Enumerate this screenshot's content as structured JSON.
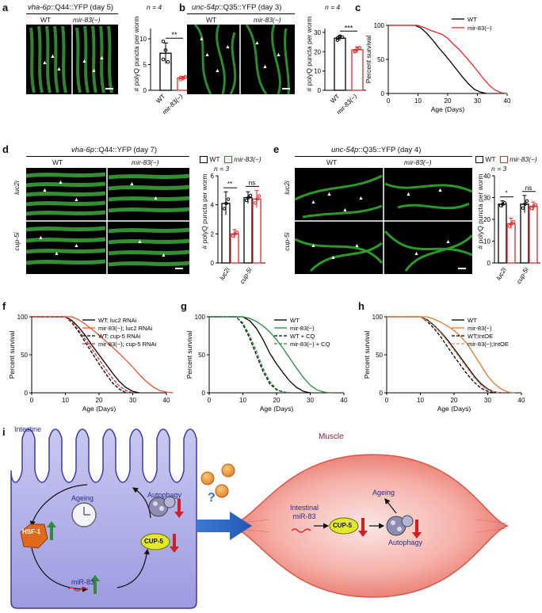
{
  "panels": {
    "a": {
      "label": "a",
      "title_gene": "vha-6p",
      "title_rest": "::Q44::YFP (day 5)",
      "col_wt": "WT",
      "col_mut": "mir-83(−)",
      "chart_n": "n = 4",
      "sig": "**",
      "ylabel": "# polyQ puncta per worm",
      "yticks": [
        "0",
        "5",
        "10"
      ]
    },
    "b": {
      "label": "b",
      "title_gene": "unc-54p",
      "title_rest": "::Q35::YFP (day 3)",
      "col_wt": "WT",
      "col_mut": "mir-83(−)",
      "chart_n": "n = 4",
      "sig": "***",
      "ylabel": "# polyQ puncta per worm",
      "yticks": [
        "0",
        "10",
        "20",
        "30"
      ]
    },
    "c": {
      "label": "c",
      "legend": [
        "WT",
        "mir-83(−)"
      ],
      "ylabel": "Percent survival",
      "xlabel": "Age (Days)",
      "xticks": [
        "0",
        "10",
        "20",
        "30",
        "40"
      ],
      "yticks": [
        "0",
        "50",
        "100"
      ]
    },
    "d": {
      "label": "d",
      "title_gene": "vha-6p",
      "title_rest": "::Q44::YFP (day 7)",
      "col_wt": "WT",
      "col_mut": "mir-83(−)",
      "row1": "luc2i",
      "row2": "cup-5i",
      "legend_wt": "WT",
      "legend_mut": "mir-83(−)",
      "chart_n": "n = 3",
      "sig1": "**",
      "sig2": "ns",
      "ylabel": "# polyQ puncta per worm",
      "yticks": [
        "0",
        "2",
        "4",
        "6"
      ],
      "xcats": [
        "luc2i",
        "cup-5i"
      ]
    },
    "e": {
      "label": "e",
      "title_gene": "unc-54p",
      "title_rest": "::Q35::YFP (day 4)",
      "col_wt": "WT",
      "col_mut": "mir-83(−)",
      "row1": "luc2i",
      "row2": "cup-5i",
      "legend_wt": "WT",
      "legend_mut": "mir-83(−)",
      "chart_n": "n = 3",
      "sig1": "*",
      "sig2": "ns",
      "ylabel": "# polyQ puncta per worm",
      "yticks": [
        "0",
        "10",
        "20",
        "30",
        "40"
      ],
      "xcats": [
        "luc2i",
        "cup-5i"
      ]
    },
    "f": {
      "label": "f",
      "legend": [
        "WT; luc2 RNAi",
        "mir-83(−); luc2 RNAi",
        "WT; cup-5 RNAi",
        "mir-83(−); cup-5 RNAi"
      ],
      "ylabel": "Percent survival",
      "xlabel": "Age (Days)",
      "xticks": [
        "0",
        "10",
        "20",
        "30",
        "40"
      ],
      "yticks": [
        "0",
        "50",
        "100"
      ]
    },
    "g": {
      "label": "g",
      "legend": [
        "WT",
        "mir-83(−)",
        "WT + CQ",
        "mir-83(−) + CQ"
      ],
      "ylabel": "Percent survival",
      "xlabel": "Age (Days)",
      "xticks": [
        "0",
        "10",
        "20",
        "30",
        "40"
      ],
      "yticks": [
        "0",
        "50",
        "100"
      ]
    },
    "h": {
      "label": "h",
      "legend": [
        "WT",
        "mir-83(−)",
        "WT;IntOE",
        "mir-83(−);IntOE"
      ],
      "ylabel": "Percent survival",
      "xlabel": "Age (Days)",
      "xticks": [
        "0",
        "10",
        "20",
        "30",
        "40"
      ],
      "yticks": [
        "0",
        "50",
        "100"
      ]
    },
    "i": {
      "label": "i",
      "intestine": "Intestine",
      "muscle": "Muscle",
      "ageing_left": "Ageing",
      "autophagy_left": "Autophagy",
      "hsf1": "HSF-1",
      "cup5_left": "CUP-5",
      "mir83": "miR-83",
      "question": "?",
      "intestinal_mir83_l1": "Intestinal",
      "intestinal_mir83_l2": "miR-83",
      "cup5_right": "CUP-5",
      "ageing_right": "Ageing",
      "autophagy_right": "Autophagy"
    }
  },
  "chart_data": [
    {
      "type": "bar",
      "panel": "a",
      "categories": [
        "WT",
        "mir-83(−)"
      ],
      "values": [
        7.2,
        2.4
      ],
      "errors": [
        2.0,
        0.3
      ],
      "ylim": [
        0,
        12
      ],
      "ylabel": "# polyQ puncta per worm",
      "points": [
        [
          9.5,
          7.8,
          5.5,
          6.0
        ],
        [
          2.1,
          2.3,
          2.6,
          2.5
        ]
      ]
    },
    {
      "type": "bar",
      "panel": "b",
      "categories": [
        "WT",
        "mir-83(−)"
      ],
      "values": [
        27,
        21
      ],
      "errors": [
        1.2,
        1.5
      ],
      "ylim": [
        0,
        32
      ],
      "ylabel": "# polyQ puncta per worm",
      "points": [
        [
          26,
          28,
          27.5,
          27
        ],
        [
          20,
          21.5,
          22,
          20.5
        ]
      ]
    },
    {
      "type": "line",
      "panel": "c",
      "xlabel": "Age (Days)",
      "ylabel": "Percent survival",
      "xlim": [
        0,
        40
      ],
      "ylim": [
        0,
        100
      ],
      "series": [
        {
          "name": "WT",
          "color": "#000000",
          "x": [
            0,
            9,
            11,
            13,
            15,
            17,
            19,
            21,
            23,
            25,
            27,
            29,
            31,
            33
          ],
          "y": [
            100,
            100,
            96,
            88,
            78,
            67,
            57,
            46,
            35,
            24,
            14,
            6,
            2,
            0
          ]
        },
        {
          "name": "mir-83(−)",
          "color": "#e52a2a",
          "x": [
            0,
            10,
            12,
            14,
            16,
            18,
            20,
            22,
            24,
            26,
            28,
            30,
            32,
            34,
            36,
            38,
            40
          ],
          "y": [
            100,
            100,
            97,
            93,
            90,
            87,
            81,
            72,
            64,
            54,
            44,
            33,
            22,
            12,
            5,
            1,
            0
          ]
        }
      ]
    },
    {
      "type": "bar",
      "panel": "d",
      "categories": [
        "luc2i",
        "cup-5i"
      ],
      "series": [
        {
          "name": "WT",
          "values": [
            4.1,
            4.5
          ],
          "errors": [
            0.8,
            0.4
          ]
        },
        {
          "name": "mir-83(−)",
          "values": [
            2.0,
            4.4
          ],
          "errors": [
            0.3,
            0.6
          ]
        }
      ],
      "ylim": [
        0,
        6
      ],
      "ylabel": "# polyQ puncta per worm"
    },
    {
      "type": "bar",
      "panel": "e",
      "categories": [
        "luc2i",
        "cup-5i"
      ],
      "series": [
        {
          "name": "WT",
          "values": [
            27,
            27
          ],
          "errors": [
            1.5,
            4
          ]
        },
        {
          "name": "mir-83(−)",
          "values": [
            18,
            26
          ],
          "errors": [
            2.5,
            2
          ]
        }
      ],
      "ylim": [
        0,
        40
      ],
      "ylabel": "# polyQ puncta per worm"
    },
    {
      "type": "line",
      "panel": "f",
      "xlabel": "Age (Days)",
      "ylabel": "Percent survival",
      "xlim": [
        0,
        40
      ],
      "ylim": [
        0,
        100
      ],
      "series": [
        {
          "name": "WT; luc2 RNAi",
          "color": "#000000",
          "dash": false,
          "x": [
            0,
            10,
            12,
            14,
            16,
            18,
            20,
            22,
            24,
            26,
            28,
            30,
            32
          ],
          "y": [
            100,
            100,
            95,
            86,
            75,
            62,
            50,
            38,
            26,
            15,
            7,
            2,
            0
          ]
        },
        {
          "name": "mir-83(−); luc2 RNAi",
          "color": "#e0572e",
          "dash": false,
          "x": [
            0,
            12,
            14,
            16,
            18,
            20,
            22,
            24,
            26,
            28,
            30,
            32,
            34,
            36,
            38,
            40,
            42
          ],
          "y": [
            100,
            100,
            96,
            90,
            83,
            76,
            68,
            60,
            52,
            43,
            34,
            24,
            15,
            8,
            3,
            1,
            0
          ]
        },
        {
          "name": "WT; cup-5 RNAi",
          "color": "#000000",
          "dash": true,
          "x": [
            0,
            10,
            12,
            14,
            16,
            18,
            20,
            22,
            24,
            26,
            28
          ],
          "y": [
            100,
            100,
            92,
            80,
            66,
            52,
            38,
            25,
            13,
            5,
            0
          ]
        },
        {
          "name": "mir-83(−); cup-5 RNAi",
          "color": "#e52a2a",
          "dash": true,
          "x": [
            0,
            10,
            12,
            14,
            16,
            18,
            20,
            22,
            24,
            26,
            28,
            30
          ],
          "y": [
            100,
            100,
            93,
            82,
            70,
            57,
            44,
            31,
            19,
            9,
            3,
            0
          ]
        }
      ]
    },
    {
      "type": "line",
      "panel": "g",
      "xlabel": "Age (Days)",
      "ylabel": "Percent survival",
      "xlim": [
        0,
        40
      ],
      "ylim": [
        0,
        100
      ],
      "series": [
        {
          "name": "WT",
          "color": "#000000",
          "dash": false,
          "x": [
            0,
            10,
            12,
            14,
            16,
            18,
            20,
            22,
            24,
            26,
            28,
            30
          ],
          "y": [
            100,
            100,
            95,
            85,
            70,
            52,
            38,
            26,
            15,
            7,
            2,
            0
          ]
        },
        {
          "name": "mir-83(−)",
          "color": "#2a8a3a",
          "dash": false,
          "x": [
            0,
            10,
            12,
            14,
            16,
            18,
            20,
            22,
            24,
            26,
            28,
            30,
            32,
            34,
            36
          ],
          "y": [
            100,
            100,
            98,
            94,
            88,
            80,
            70,
            58,
            45,
            32,
            20,
            10,
            4,
            1,
            0
          ]
        },
        {
          "name": "WT + CQ",
          "color": "#000000",
          "dash": true,
          "x": [
            0,
            8,
            10,
            12,
            14,
            16,
            18,
            20,
            22,
            24
          ],
          "y": [
            100,
            100,
            90,
            72,
            50,
            28,
            12,
            4,
            1,
            0
          ]
        },
        {
          "name": "mir-83(−) + CQ",
          "color": "#2a8a3a",
          "dash": true,
          "x": [
            0,
            8,
            10,
            12,
            14,
            16,
            18,
            20,
            22,
            24
          ],
          "y": [
            100,
            100,
            92,
            76,
            55,
            32,
            15,
            5,
            1,
            0
          ]
        }
      ]
    },
    {
      "type": "line",
      "panel": "h",
      "xlabel": "Age (Days)",
      "ylabel": "Percent survival",
      "xlim": [
        0,
        40
      ],
      "ylim": [
        0,
        100
      ],
      "series": [
        {
          "name": "WT",
          "color": "#000000",
          "dash": false,
          "x": [
            0,
            10,
            12,
            14,
            16,
            18,
            20,
            22,
            24,
            26,
            28,
            30,
            32,
            34
          ],
          "y": [
            100,
            100,
            96,
            89,
            80,
            70,
            58,
            46,
            34,
            22,
            12,
            5,
            1,
            0
          ]
        },
        {
          "name": "mir-83(−)",
          "color": "#d97a3a",
          "dash": false,
          "x": [
            0,
            12,
            14,
            16,
            18,
            20,
            22,
            24,
            26,
            28,
            30,
            32,
            34,
            36,
            38
          ],
          "y": [
            100,
            100,
            97,
            93,
            88,
            82,
            74,
            64,
            50,
            36,
            22,
            12,
            5,
            1,
            0
          ]
        },
        {
          "name": "WT;IntOE",
          "color": "#000000",
          "dash": true,
          "x": [
            0,
            10,
            12,
            14,
            16,
            18,
            20,
            22,
            24,
            26,
            28,
            30,
            32
          ],
          "y": [
            100,
            100,
            94,
            85,
            74,
            61,
            48,
            36,
            24,
            14,
            6,
            2,
            0
          ]
        },
        {
          "name": "mir-83(−);IntOE",
          "color": "#e89060",
          "dash": true,
          "x": [
            0,
            10,
            12,
            14,
            16,
            18,
            20,
            22,
            24,
            26,
            28,
            30,
            32,
            34
          ],
          "y": [
            100,
            100,
            95,
            88,
            79,
            68,
            56,
            44,
            32,
            20,
            10,
            4,
            1,
            0
          ]
        }
      ]
    }
  ]
}
